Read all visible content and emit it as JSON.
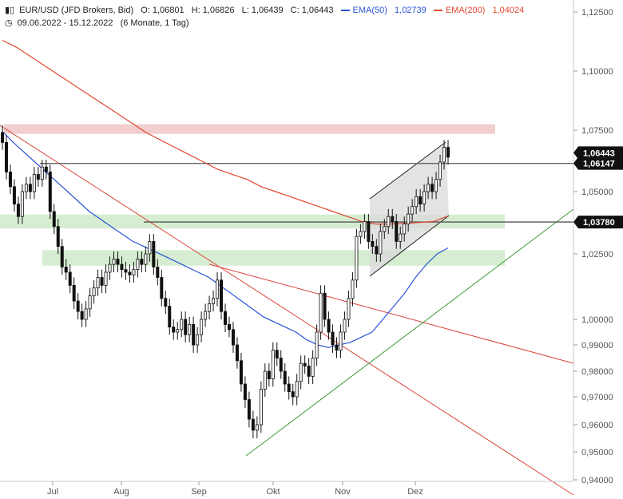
{
  "header": {
    "symbol": "EUR/USD (JFD Brokers, Bid)",
    "o": "O: 1,06801",
    "h": "H: 1,06826",
    "l": "L: 1,06439",
    "c": "C: 1,06443",
    "ema50_label": "EMA(50)",
    "ema50_value": "1,02739",
    "ema200_label": "EMA(200)",
    "ema200_value": "1,04024",
    "range": "09.06.2022 - 15.12.2022",
    "period": "(6 Monate, 1 Tag)",
    "icon": "candlestick-icon",
    "clock_icon": "clock-icon",
    "ema50_color": "#2b54d6",
    "ema200_color": "#e0472f"
  },
  "chart_data": {
    "type": "candlestick",
    "x_labels": [
      "Jul",
      "Aug",
      "Sep",
      "Okt",
      "Nov",
      "Dez"
    ],
    "y_ticks": [
      "1,12500",
      "1,10000",
      "1,07500",
      "1,05000",
      "1,02500",
      "1,00000",
      "0,99000",
      "0,98000",
      "0,97000",
      "0,96000",
      "0,95000",
      "0,94000"
    ],
    "price_tags": [
      "1,06443",
      "1,06147",
      "1,03780"
    ],
    "candle_closes": [
      1.07,
      1.058,
      1.052,
      1.045,
      1.04,
      1.05,
      1.053,
      1.05,
      1.057,
      1.055,
      1.06,
      1.058,
      1.042,
      1.036,
      1.028,
      1.02,
      1.018,
      1.013,
      1.007,
      1.003,
      1.0,
      1.004,
      1.009,
      1.012,
      1.016,
      1.013,
      1.018,
      1.021,
      1.023,
      1.021,
      1.019,
      1.018,
      1.017,
      1.019,
      1.023,
      1.021,
      1.025,
      1.03,
      1.02,
      1.016,
      1.008,
      1.005,
      0.997,
      0.995,
      0.996,
      1.0,
      0.994,
      0.998,
      0.99,
      0.994,
      1.0,
      1.003,
      1.006,
      1.008,
      1.015,
      1.003,
      0.998,
      0.996,
      0.99,
      0.984,
      0.975,
      0.969,
      0.962,
      0.958,
      0.96,
      0.973,
      0.98,
      0.977,
      0.988,
      0.985,
      0.98,
      0.975,
      0.972,
      0.97,
      0.976,
      0.983,
      0.982,
      0.978,
      0.985,
      0.995,
      1.01,
      1.0,
      0.995,
      0.99,
      0.988,
      0.995,
      1.0,
      1.008,
      1.015,
      1.032,
      1.034,
      1.038,
      1.03,
      1.028,
      1.025,
      1.034,
      1.036,
      1.04,
      1.038,
      1.03,
      1.033,
      1.037,
      1.041,
      1.044,
      1.048,
      1.045,
      1.05,
      1.053,
      1.05,
      1.055,
      1.062,
      1.068,
      1.064
    ],
    "ema50": [
      1.0745,
      1.07,
      1.066,
      1.062,
      1.058,
      1.054,
      1.05,
      1.046,
      1.042,
      1.039,
      1.036,
      1.033,
      1.03,
      1.028,
      1.026,
      1.024,
      1.022,
      1.02,
      1.018,
      1.016,
      1.013,
      1.01,
      1.007,
      1.004,
      1.001,
      0.999,
      0.997,
      0.995,
      0.992,
      0.99,
      0.989,
      0.99,
      0.991,
      0.993,
      0.995,
      1.0,
      1.005,
      1.01,
      1.016,
      1.021,
      1.025,
      1.0274
    ],
    "ema200": [
      1.113,
      1.11,
      1.106,
      1.102,
      1.098,
      1.094,
      1.09,
      1.086,
      1.082,
      1.078,
      1.074,
      1.071,
      1.068,
      1.065,
      1.062,
      1.059,
      1.057,
      1.055,
      1.052,
      1.05,
      1.048,
      1.046,
      1.044,
      1.042,
      1.04,
      1.038,
      1.037,
      1.037,
      1.0372,
      1.0376,
      1.038,
      1.0402
    ],
    "horizontal_lines": [
      1.06147,
      1.0378
    ],
    "zones": [
      {
        "kind": "resistance",
        "low": 1.0735,
        "high": 1.0775,
        "color": "#f0c6c6"
      },
      {
        "kind": "support",
        "low": 1.0352,
        "high": 1.0408,
        "color": "#cfeac9"
      },
      {
        "kind": "support",
        "low": 1.0205,
        "high": 1.0265,
        "color": "#cfeac9"
      }
    ],
    "grid": false,
    "legend": "top-left"
  }
}
